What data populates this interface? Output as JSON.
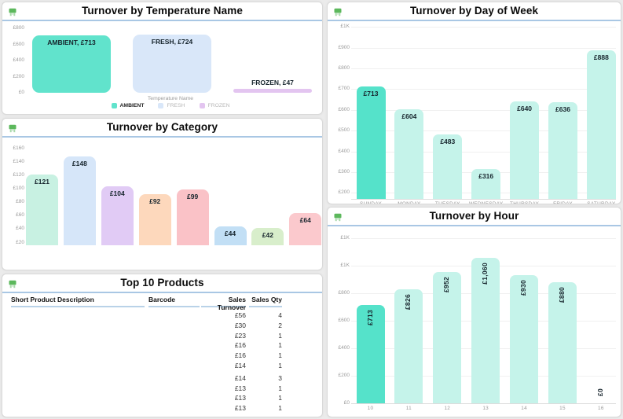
{
  "colors": {
    "page_bg": "#ebebeb",
    "card_border": "#d9d9d9",
    "header_divider": "#a9c7e4",
    "grid_line": "#f0f0f0",
    "tick_text": "#9b9b9b",
    "value_label_text": "#16242c",
    "table_underline": "#b9d2e8",
    "icon_green": "#5cb85c"
  },
  "chart_data": [
    {
      "id": "turnover_by_temperature",
      "type": "bar",
      "title": "Turnover by Temperature Name",
      "xlabel": "Temperature Name",
      "categories": [
        "AMBIENT",
        "FRESH",
        "FROZEN"
      ],
      "values": [
        713,
        724,
        47
      ],
      "value_labels": [
        "AMBIENT, £713",
        "FRESH, £724",
        "FROZEN, £47"
      ],
      "bar_colors": [
        "#61e3cc",
        "#d9e7f9",
        "#e3c5f0"
      ],
      "ylim": [
        0,
        800
      ],
      "yticks": [
        {
          "v": 800,
          "label": "£800"
        },
        {
          "v": 600,
          "label": "£600"
        },
        {
          "v": 400,
          "label": "£400"
        },
        {
          "v": 200,
          "label": "£200"
        },
        {
          "v": 0,
          "label": "£0"
        }
      ],
      "legend_position": "bottom",
      "legend": [
        {
          "label": "AMBIENT",
          "color": "#61e3cc",
          "muted": false
        },
        {
          "label": "FRESH",
          "color": "#d9e7f9",
          "muted": true
        },
        {
          "label": "FROZEN",
          "color": "#e3c5f0",
          "muted": true
        }
      ],
      "grid": false
    },
    {
      "id": "turnover_by_category",
      "type": "bar",
      "title": "Turnover by Category",
      "values": [
        121,
        148,
        104,
        92,
        99,
        44,
        42,
        64
      ],
      "value_labels": [
        "£121",
        "£148",
        "£104",
        "£92",
        "£99",
        "£44",
        "£42",
        "£64"
      ],
      "bar_colors": [
        "#c8f1e2",
        "#d6e6f9",
        "#e1cbf5",
        "#fdd8bc",
        "#fac2c7",
        "#c2dff5",
        "#d8eecb",
        "#fbc9cd"
      ],
      "ylim": [
        20,
        160
      ],
      "yticks": [
        {
          "v": 160,
          "label": "£160"
        },
        {
          "v": 140,
          "label": "£140"
        },
        {
          "v": 120,
          "label": "£120"
        },
        {
          "v": 100,
          "label": "£100"
        },
        {
          "v": 80,
          "label": "£80"
        },
        {
          "v": 60,
          "label": "£60"
        },
        {
          "v": 40,
          "label": "£40"
        },
        {
          "v": 20,
          "label": "£20"
        }
      ],
      "grid": false
    },
    {
      "id": "turnover_by_day_of_week",
      "type": "bar",
      "title": "Turnover by Day of Week",
      "categories": [
        "SUNDAY",
        "MONDAY",
        "TUESDAY",
        "WEDNESDAY",
        "THURSDAY",
        "FRIDAY",
        "SATURDAY"
      ],
      "values": [
        713,
        604,
        483,
        316,
        640,
        636,
        888
      ],
      "value_labels": [
        "£713",
        "£604",
        "£483",
        "£316",
        "£640",
        "£636",
        "£888"
      ],
      "highlight_index": 0,
      "highlight_color": "#55e2ca",
      "bar_color": "#c5f3ea",
      "ylim": [
        200,
        1000
      ],
      "yticks": [
        {
          "v": 1000,
          "label": "£1K"
        },
        {
          "v": 900,
          "label": "£900"
        },
        {
          "v": 800,
          "label": "£800"
        },
        {
          "v": 700,
          "label": "£700"
        },
        {
          "v": 600,
          "label": "£600"
        },
        {
          "v": 500,
          "label": "£500"
        },
        {
          "v": 400,
          "label": "£400"
        },
        {
          "v": 300,
          "label": "£300"
        },
        {
          "v": 200,
          "label": "£200"
        }
      ],
      "grid": true
    },
    {
      "id": "turnover_by_hour",
      "type": "bar",
      "title": "Turnover by Hour",
      "categories": [
        "10",
        "11",
        "12",
        "13",
        "14",
        "15",
        "16"
      ],
      "values": [
        713,
        826,
        952,
        1060,
        930,
        880,
        0
      ],
      "value_labels": [
        "£713",
        "£826",
        "£952",
        "£1,060",
        "£930",
        "£880",
        "£0"
      ],
      "rotated_value_labels": true,
      "highlight_index": 0,
      "highlight_color": "#55e2ca",
      "bar_color": "#c5f3ea",
      "ylim": [
        0,
        1200
      ],
      "yticks": [
        {
          "v": 1200,
          "label": "£1K"
        },
        {
          "v": 1000,
          "label": "£1K"
        },
        {
          "v": 800,
          "label": "£800"
        },
        {
          "v": 600,
          "label": "£600"
        },
        {
          "v": 400,
          "label": "£400"
        },
        {
          "v": 200,
          "label": "£200"
        },
        {
          "v": 0,
          "label": "£0"
        }
      ],
      "grid": true
    },
    {
      "id": "top_10_products",
      "type": "table",
      "title": "Top 10 Products",
      "columns": [
        "Short Product Description",
        "Barcode",
        "Sales Turnover",
        "Sales Qty"
      ],
      "rows": [
        [
          "",
          "",
          "£56",
          "4"
        ],
        [
          "",
          "",
          "£30",
          "2"
        ],
        [
          "",
          "",
          "£23",
          "1"
        ],
        [
          "",
          "",
          "£16",
          "1"
        ],
        [
          "",
          "",
          "£16",
          "1"
        ],
        [
          "",
          "",
          "£14",
          "1"
        ],
        [
          "",
          "",
          "£14",
          "3"
        ],
        [
          "",
          "",
          "£13",
          "1"
        ],
        [
          "",
          "",
          "£13",
          "1"
        ],
        [
          "",
          "",
          "£13",
          "1"
        ]
      ]
    }
  ]
}
